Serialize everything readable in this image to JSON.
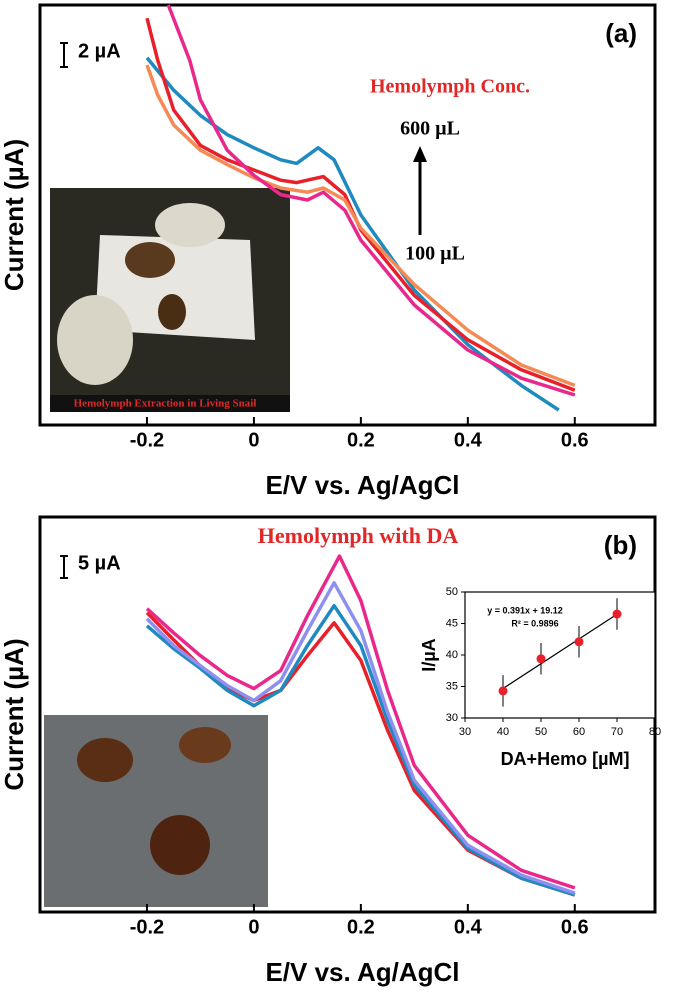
{
  "chart_data": [
    {
      "type": "line",
      "panel_label": "(a)",
      "xlabel": "E/V vs. Ag/AgCl",
      "ylabel": "Current (µA)",
      "xlim": [
        -0.4,
        0.75
      ],
      "ylim": [
        0,
        35
      ],
      "xticks": [
        -0.2,
        0,
        0.2,
        0.4,
        0.6
      ],
      "scale_bar": {
        "label": "2 µA",
        "value": 2
      },
      "annotations": [
        "Hemolymph Conc.",
        "600 µL",
        "100 µL",
        "Hemolymph Extraction in Living Snail"
      ],
      "series": [
        {
          "color": "#1f8ac0",
          "x": [
            -0.2,
            -0.15,
            -0.1,
            -0.05,
            0,
            0.05,
            0.08,
            0.12,
            0.15,
            0.2,
            0.3,
            0.4,
            0.5,
            0.57
          ],
          "values": [
            30.6,
            27.9,
            25.8,
            24.2,
            23.1,
            22.1,
            21.8,
            23.1,
            22.1,
            17.5,
            11.25,
            6.7,
            3.3,
            1.25
          ]
        },
        {
          "color": "#e8202a",
          "x": [
            -0.2,
            -0.18,
            -0.15,
            -0.1,
            -0.05,
            0,
            0.05,
            0.08,
            0.13,
            0.17,
            0.2,
            0.3,
            0.4,
            0.5,
            0.6
          ],
          "values": [
            33.9,
            30.4,
            26.25,
            23.3,
            22.1,
            21.25,
            20.4,
            20.2,
            20.7,
            19.2,
            16.25,
            10.8,
            7.1,
            4.6,
            2.9
          ]
        },
        {
          "color": "#f58a55",
          "x": [
            -0.2,
            -0.18,
            -0.15,
            -0.1,
            -0.05,
            0,
            0.05,
            0.1,
            0.13,
            0.17,
            0.2,
            0.3,
            0.4,
            0.5,
            0.6
          ],
          "values": [
            30,
            27.5,
            25,
            22.9,
            21.7,
            20.6,
            19.75,
            19.4,
            19.75,
            18.75,
            16.4,
            11.7,
            7.9,
            5,
            3.3
          ]
        },
        {
          "color": "#e8288a",
          "x": [
            -0.16,
            -0.12,
            -0.1,
            -0.05,
            0,
            0.05,
            0.1,
            0.13,
            0.17,
            0.2,
            0.3,
            0.4,
            0.5,
            0.6
          ],
          "values": [
            35,
            30.4,
            27.1,
            22.9,
            20.8,
            19.2,
            18.75,
            19.4,
            17.9,
            15.4,
            10,
            6.25,
            3.9,
            2.5
          ]
        }
      ]
    },
    {
      "type": "line",
      "panel_label": "(b)",
      "xlabel": "E/V vs. Ag/AgCl",
      "ylabel": "Current (µA)",
      "xlim": [
        -0.4,
        0.75
      ],
      "ylim": [
        0,
        90
      ],
      "xticks": [
        -0.2,
        0,
        0.2,
        0.4,
        0.6
      ],
      "scale_bar": {
        "label": "5 µA",
        "value": 5
      },
      "annotations": [
        "Hemolymph with DA"
      ],
      "series": [
        {
          "color": "#e8202a",
          "x": [
            -0.2,
            -0.15,
            -0.1,
            -0.05,
            0,
            0.05,
            0.1,
            0.15,
            0.2,
            0.25,
            0.3,
            0.4,
            0.5,
            0.6
          ],
          "values": [
            68.2,
            62,
            56,
            51,
            48.2,
            50.5,
            58.4,
            65.9,
            57.3,
            41.4,
            27.7,
            14.1,
            7.7,
            3.9
          ]
        },
        {
          "color": "#1f8ac0",
          "x": [
            -0.2,
            -0.15,
            -0.1,
            -0.05,
            0,
            0.05,
            0.1,
            0.15,
            0.2,
            0.25,
            0.3,
            0.4,
            0.5,
            0.6
          ],
          "values": [
            65.2,
            60,
            55.5,
            50.5,
            47,
            50.5,
            60.7,
            69.8,
            60.7,
            43.6,
            28.9,
            14.5,
            7.7,
            3.9
          ]
        },
        {
          "color": "#8f8ff0",
          "x": [
            -0.2,
            -0.15,
            -0.1,
            -0.05,
            0,
            0.05,
            0.1,
            0.15,
            0.2,
            0.25,
            0.3,
            0.4,
            0.5,
            0.6
          ],
          "values": [
            66.8,
            60.7,
            56.1,
            51.6,
            48.2,
            52.7,
            64.1,
            75,
            64.1,
            45.5,
            30,
            15.2,
            8.4,
            4.3
          ]
        },
        {
          "color": "#e8288a",
          "x": [
            -0.2,
            -0.15,
            -0.1,
            -0.05,
            0,
            0.05,
            0.1,
            0.16,
            0.2,
            0.25,
            0.3,
            0.4,
            0.5,
            0.6
          ],
          "values": [
            69.1,
            63.6,
            58.4,
            53.9,
            50.9,
            55,
            67.5,
            81.1,
            70.9,
            50.5,
            33.4,
            17.5,
            9.5,
            5.5
          ]
        }
      ]
    },
    {
      "type": "scatter",
      "xlabel": "DA+Hemo [µM]",
      "ylabel": "I/µA",
      "xlim": [
        30,
        80
      ],
      "ylim": [
        30,
        50
      ],
      "xticks": [
        30,
        40,
        50,
        60,
        70,
        80
      ],
      "yticks": [
        30,
        35,
        40,
        45,
        50
      ],
      "color": "#e8202a",
      "x": [
        40,
        50,
        60,
        70
      ],
      "values": [
        34.3,
        39.4,
        42.1,
        46.5
      ],
      "errors": [
        2.5,
        2.5,
        2.5,
        2.5
      ],
      "annotations": [
        "y = 0.391x + 19.12",
        "R² = 0.9896"
      ]
    }
  ]
}
